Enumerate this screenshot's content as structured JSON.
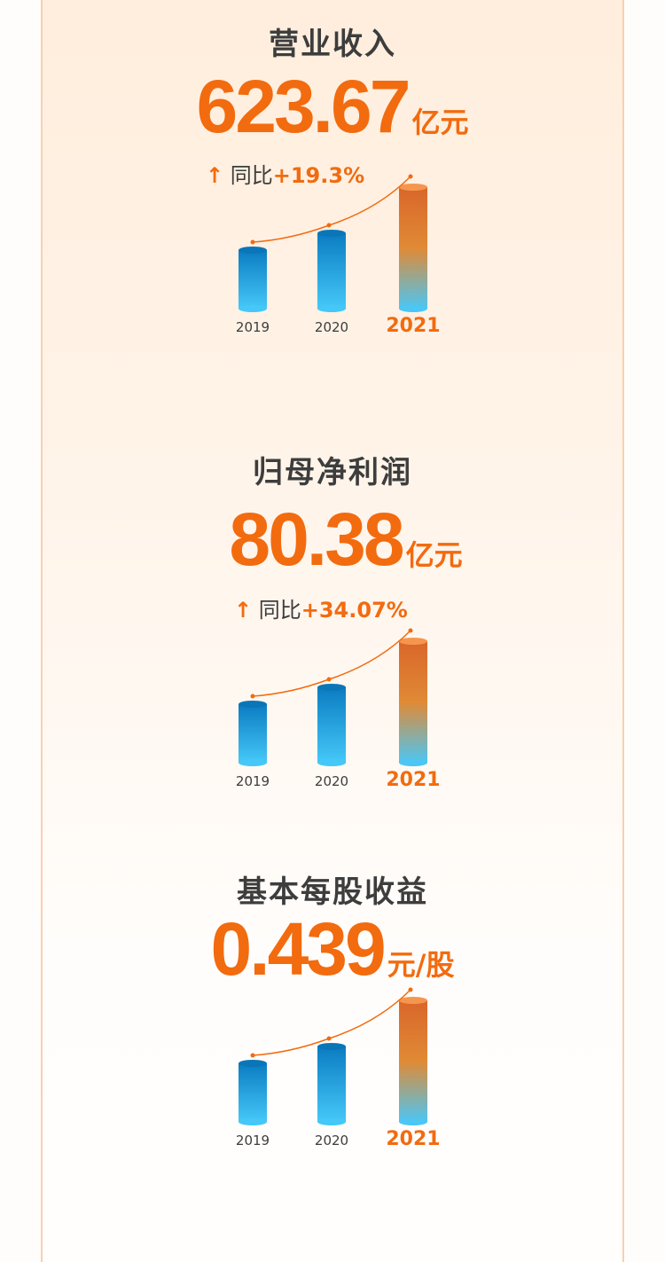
{
  "sections": [
    {
      "title": "营业收入",
      "value": "623.67",
      "unit": "亿元",
      "yoy_label": "同比",
      "yoy_value": "+19.3%",
      "yoy_icon": "arrow-up-icon"
    },
    {
      "title": "归母净利润",
      "value": "80.38",
      "unit": "亿元",
      "yoy_label": "同比",
      "yoy_value": "+34.07%",
      "yoy_icon": "arrow-up-icon"
    },
    {
      "title": "基本每股收益",
      "value": "0.439",
      "unit": "元/股"
    }
  ],
  "colors": {
    "accent": "#f26b0f",
    "text": "#3d3d3d",
    "bar_blue_top": "#0a7cc2",
    "bar_blue_bottom": "#45c8f8",
    "bar_highlight_top": "#d9662a",
    "bar_highlight_bottom": "#4cc6f4"
  },
  "chart_data": [
    {
      "type": "bar",
      "categories": [
        "2019",
        "2020",
        "2021"
      ],
      "highlight": "2021",
      "trend_line": true
    },
    {
      "type": "bar",
      "categories": [
        "2019",
        "2020",
        "2021"
      ],
      "highlight": "2021",
      "trend_line": true
    },
    {
      "type": "bar",
      "categories": [
        "2019",
        "2020",
        "2021"
      ],
      "highlight": "2021",
      "trend_line": true
    }
  ]
}
